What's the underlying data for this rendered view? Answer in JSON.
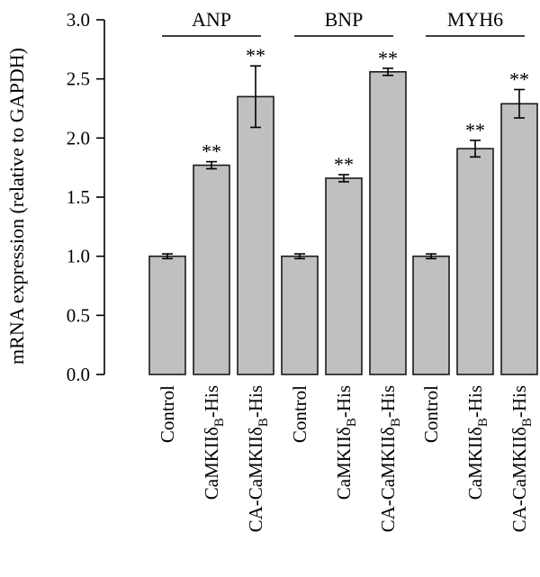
{
  "chart_data": {
    "type": "bar",
    "ylabel": "mRNA expression (relative to GAPDH)",
    "ylim": [
      0,
      3.0
    ],
    "yticks": [
      "0.0",
      "0.5",
      "1.0",
      "1.5",
      "2.0",
      "2.5",
      "3.0"
    ],
    "grid": false,
    "groups": [
      {
        "name": "ANP",
        "bars": [
          {
            "label": "Control",
            "value": 1.0,
            "error": 0.02,
            "annotation": ""
          },
          {
            "label": "CaMKIIδB-His",
            "label_main": "CaMKIIδ",
            "label_sub": "B",
            "label_suffix": "-His",
            "value": 1.77,
            "error": 0.03,
            "annotation": "**"
          },
          {
            "label": "CA-CaMKIIδB-His",
            "label_main": "CA-CaMKIIδ",
            "label_sub": "B",
            "label_suffix": "-His",
            "value": 2.35,
            "error": 0.26,
            "annotation": "**"
          }
        ]
      },
      {
        "name": "BNP",
        "bars": [
          {
            "label": "Control",
            "value": 1.0,
            "error": 0.02,
            "annotation": ""
          },
          {
            "label": "CaMKIIδB-His",
            "label_main": "CaMKIIδ",
            "label_sub": "B",
            "label_suffix": "-His",
            "value": 1.66,
            "error": 0.03,
            "annotation": "**"
          },
          {
            "label": "CA-CaMKIIδB-His",
            "label_main": "CA-CaMKIIδ",
            "label_sub": "B",
            "label_suffix": "-His",
            "value": 2.56,
            "error": 0.03,
            "annotation": "**"
          }
        ]
      },
      {
        "name": "MYH6",
        "bars": [
          {
            "label": "Control",
            "value": 1.0,
            "error": 0.02,
            "annotation": ""
          },
          {
            "label": "CaMKIIδB-His",
            "label_main": "CaMKIIδ",
            "label_sub": "B",
            "label_suffix": "-His",
            "value": 1.91,
            "error": 0.07,
            "annotation": "**"
          },
          {
            "label": "CA-CaMKIIδB-His",
            "label_main": "CA-CaMKIIδ",
            "label_sub": "B",
            "label_suffix": "-His",
            "value": 2.29,
            "error": 0.12,
            "annotation": "**"
          }
        ]
      }
    ],
    "colors": {
      "bar_fill": "#c0c0c0",
      "bar_stroke": "#1a1a1a"
    }
  }
}
